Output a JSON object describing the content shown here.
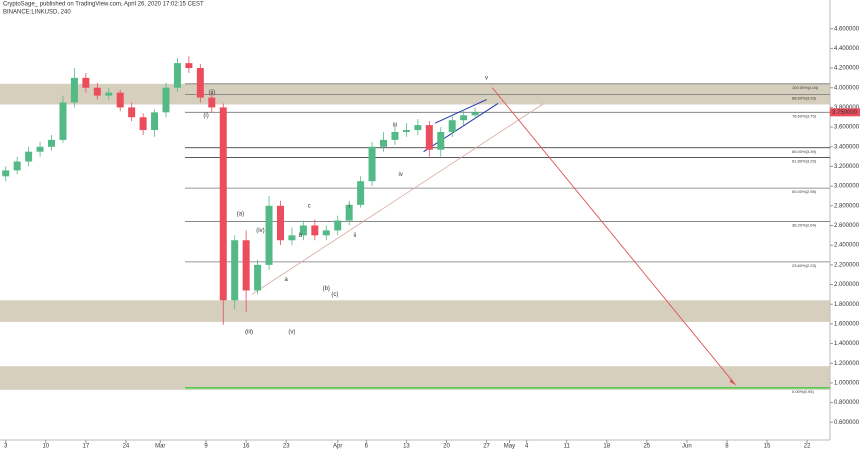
{
  "chart_data": {
    "type": "candlestick",
    "title": "CryptoSage_ published on TradingView.com, April 26, 2020 17:02:15 CEST",
    "subtitle": "BINANCE:LINKUSD, 240",
    "x": [
      0,
      2,
      4,
      6,
      8,
      10,
      12,
      14,
      16,
      18,
      20,
      22,
      24,
      26,
      28,
      30,
      32,
      34,
      36,
      38,
      40,
      42,
      44,
      46,
      48,
      50,
      52,
      54,
      56,
      58,
      60,
      62,
      64,
      66,
      68,
      70,
      72,
      74,
      76,
      78,
      80,
      82
    ],
    "open": [
      3.1,
      3.16,
      3.25,
      3.35,
      3.4,
      3.47,
      3.85,
      4.1,
      4.0,
      3.92,
      3.95,
      3.8,
      3.7,
      3.57,
      3.75,
      4.0,
      4.25,
      4.2,
      3.9,
      3.8,
      1.84,
      2.45,
      1.94,
      2.2,
      2.8,
      2.45,
      2.5,
      2.6,
      2.5,
      2.55,
      2.65,
      2.81,
      3.05,
      3.4,
      3.47,
      3.55,
      3.57,
      3.62,
      3.37,
      3.55,
      3.67,
      3.72
    ],
    "high": [
      3.2,
      3.3,
      3.4,
      3.45,
      3.52,
      3.92,
      4.2,
      4.15,
      4.05,
      4.0,
      3.98,
      3.85,
      3.74,
      3.78,
      4.05,
      4.3,
      4.32,
      4.24,
      3.95,
      3.84,
      2.5,
      2.55,
      2.25,
      2.9,
      2.85,
      2.58,
      2.65,
      2.66,
      2.6,
      2.7,
      2.85,
      3.1,
      3.45,
      3.55,
      3.62,
      3.64,
      3.68,
      3.66,
      3.6,
      3.72,
      3.78,
      3.8
    ],
    "low": [
      3.05,
      3.12,
      3.2,
      3.3,
      3.36,
      3.44,
      3.8,
      3.95,
      3.88,
      3.88,
      3.76,
      3.66,
      3.52,
      3.5,
      3.7,
      3.96,
      4.15,
      3.85,
      3.75,
      1.59,
      1.75,
      1.72,
      1.9,
      2.15,
      2.4,
      2.4,
      2.45,
      2.45,
      2.45,
      2.5,
      2.6,
      2.78,
      3.0,
      3.35,
      3.42,
      3.5,
      3.52,
      3.3,
      3.3,
      3.5,
      3.62,
      3.68
    ],
    "close": [
      3.16,
      3.25,
      3.35,
      3.4,
      3.47,
      3.85,
      4.1,
      4.0,
      3.92,
      3.95,
      3.8,
      3.7,
      3.57,
      3.75,
      4.0,
      4.25,
      4.2,
      3.9,
      3.8,
      1.84,
      2.45,
      1.94,
      2.2,
      2.8,
      2.45,
      2.5,
      2.6,
      2.5,
      2.55,
      2.65,
      2.81,
      3.05,
      3.4,
      3.47,
      3.55,
      3.57,
      3.62,
      3.37,
      3.55,
      3.67,
      3.72,
      3.75
    ],
    "up_color": "#53b987",
    "down_color": "#eb4d5c",
    "xlim": [
      -1,
      144
    ],
    "ylim": [
      0.42,
      4.79
    ],
    "xticks": [
      {
        "value": 0,
        "label": "3"
      },
      {
        "value": 7,
        "label": "10"
      },
      {
        "value": 14,
        "label": "17"
      },
      {
        "value": 21,
        "label": "24"
      },
      {
        "value": 27,
        "label": "Mar"
      },
      {
        "value": 35,
        "label": "9"
      },
      {
        "value": 42,
        "label": "16"
      },
      {
        "value": 49,
        "label": "23"
      },
      {
        "value": 58,
        "label": "Apr"
      },
      {
        "value": 63,
        "label": "6"
      },
      {
        "value": 70,
        "label": "13"
      },
      {
        "value": 77,
        "label": "20"
      },
      {
        "value": 84,
        "label": "27"
      },
      {
        "value": 88,
        "label": "May"
      },
      {
        "value": 91,
        "label": "4"
      },
      {
        "value": 98,
        "label": "11"
      },
      {
        "value": 105,
        "label": "18"
      },
      {
        "value": 112,
        "label": "25"
      },
      {
        "value": 119,
        "label": "Jun"
      },
      {
        "value": 126,
        "label": "8"
      },
      {
        "value": 133,
        "label": "15"
      },
      {
        "value": 140,
        "label": "22"
      }
    ],
    "yticks": [
      {
        "value": 0.6,
        "label": "0.600000"
      },
      {
        "value": 0.8,
        "label": "0.800000"
      },
      {
        "value": 1.0,
        "label": "1.000000"
      },
      {
        "value": 1.2,
        "label": "1.200000"
      },
      {
        "value": 1.4,
        "label": "1.400000"
      },
      {
        "value": 1.6,
        "label": "1.600000"
      },
      {
        "value": 1.8,
        "label": "1.800000"
      },
      {
        "value": 2.0,
        "label": "2.000000"
      },
      {
        "value": 2.2,
        "label": "2.200000"
      },
      {
        "value": 2.4,
        "label": "2.400000"
      },
      {
        "value": 2.6,
        "label": "2.600000"
      },
      {
        "value": 2.8,
        "label": "2.800000"
      },
      {
        "value": 3.0,
        "label": "3.000000"
      },
      {
        "value": 3.2,
        "label": "3.200000"
      },
      {
        "value": 3.4,
        "label": "3.400000"
      },
      {
        "value": 3.6,
        "label": "3.600000"
      },
      {
        "value": 3.8,
        "label": "3.800000"
      },
      {
        "value": 4.0,
        "label": "4.000000"
      },
      {
        "value": 4.2,
        "label": "4.200000"
      },
      {
        "value": 4.4,
        "label": "4.400000"
      },
      {
        "value": 4.6,
        "label": "4.600000"
      }
    ],
    "last_price": {
      "value": 3.75,
      "label": "3.750000"
    },
    "zones": [
      {
        "from": 3.83,
        "to": 4.04
      },
      {
        "from": 1.62,
        "to": 1.84
      },
      {
        "from": 0.93,
        "to": 1.17
      }
    ],
    "fib_levels": [
      {
        "value": 4.04,
        "label": "100.00%(4.04)"
      },
      {
        "value": 3.93,
        "label": "88.60%(3.93)"
      },
      {
        "value": 3.75,
        "label": "78.60%(3.75)"
      },
      {
        "value": 3.39,
        "label": "65.00%(3.39)"
      },
      {
        "value": 3.29,
        "label": "61.80%(3.29)"
      },
      {
        "value": 2.98,
        "label": "50.00%(2.98)"
      },
      {
        "value": 2.64,
        "label": "38.20%(2.64)"
      },
      {
        "value": 2.23,
        "label": "23.60%(2.23)"
      }
    ],
    "target": {
      "value": 0.95,
      "label": "0.00%(0.95)"
    },
    "arrow": {
      "x": [
        85,
        127.5
      ],
      "y": [
        4.0,
        0.98
      ]
    },
    "support": {
      "x": [
        43,
        94
      ],
      "y": [
        1.9,
        3.84
      ]
    },
    "wedge": [
      {
        "x": [
          73,
          86
        ],
        "y": [
          3.35,
          3.84
        ]
      },
      {
        "x": [
          75,
          84
        ],
        "y": [
          3.64,
          3.88
        ]
      }
    ],
    "wave_labels": [
      "(i)",
      "(ii)",
      "(iii)",
      "(iv)",
      "(v)",
      "(a)",
      "(b)",
      "(c)",
      "a",
      "b",
      "c",
      "i",
      "ii",
      "iii",
      "iv",
      "v"
    ]
  }
}
